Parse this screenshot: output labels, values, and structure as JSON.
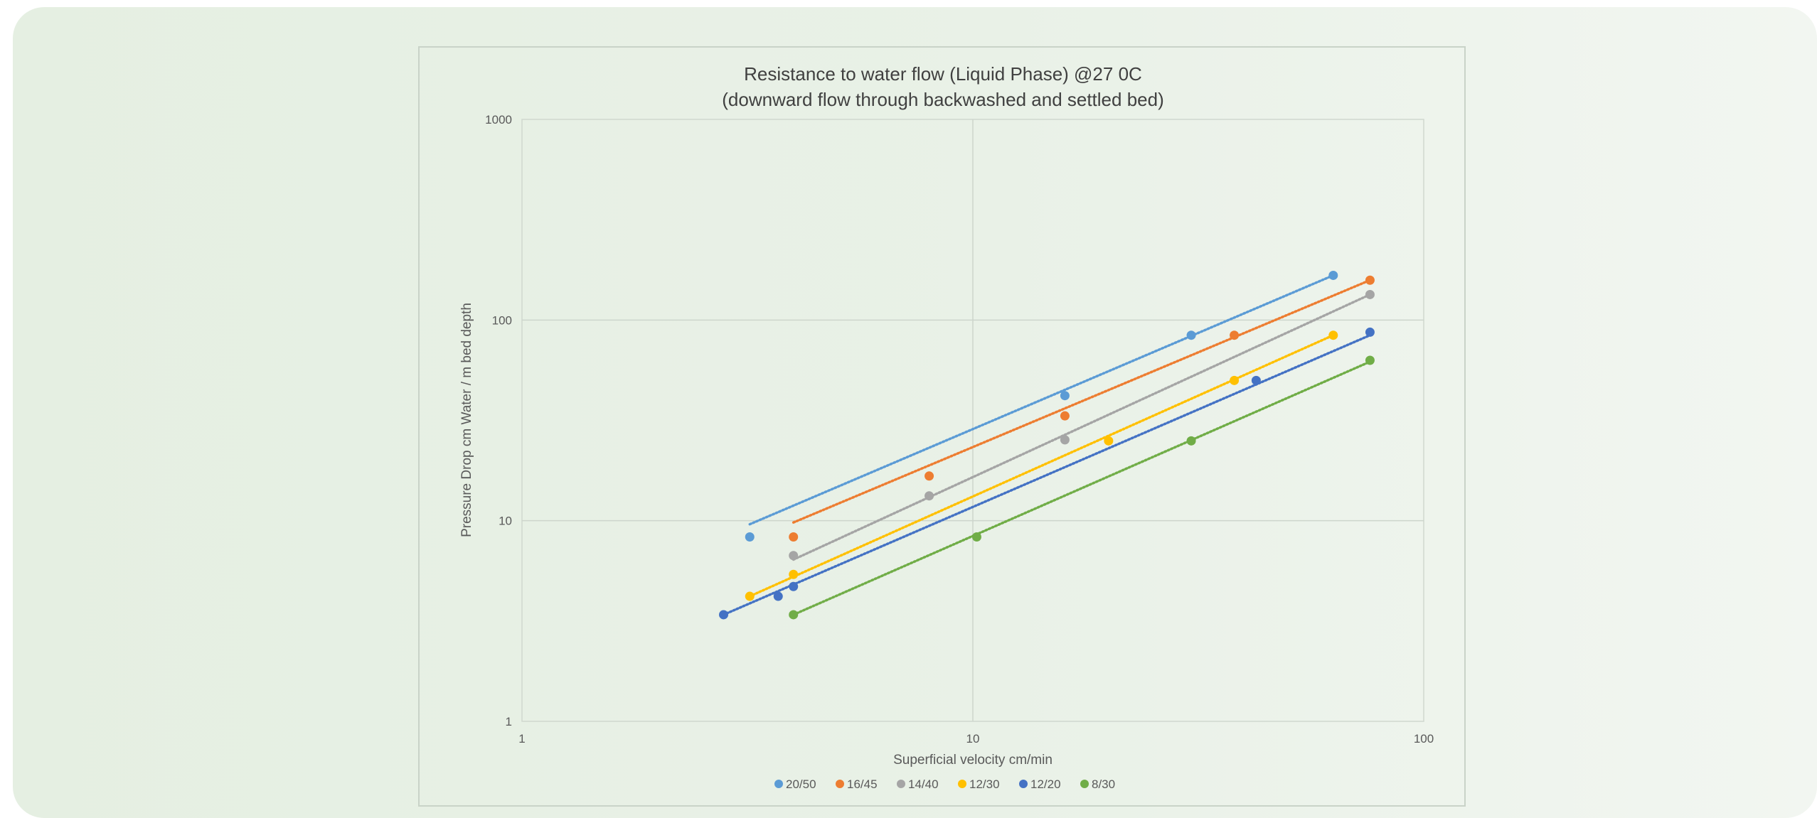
{
  "chart_data": {
    "type": "scatter",
    "title": "Resistance to water flow (Liquid Phase) @27 0C",
    "subtitle": "(downward flow through backwashed and settled bed)",
    "xlabel": "Superficial velocity cm/min",
    "ylabel": "Pressure Drop cm Water / m bed depth",
    "xscale": "log",
    "yscale": "log",
    "xlim": [
      1,
      100
    ],
    "ylim": [
      1,
      1000
    ],
    "x_ticks": [
      "1",
      "10",
      "100"
    ],
    "y_ticks": [
      "1",
      "10",
      "100",
      "1000"
    ],
    "grid": true,
    "legend_position": "bottom",
    "trendlines": "dotted power-law fit per series",
    "series": [
      {
        "name": "20/50",
        "color": "#5b9bd5",
        "points": [
          [
            3.2,
            8.3
          ],
          [
            16,
            42
          ],
          [
            30.5,
            84
          ],
          [
            63,
            167
          ]
        ],
        "trend": [
          [
            3.2,
            9.6
          ],
          [
            63,
            167
          ]
        ]
      },
      {
        "name": "16/45",
        "color": "#ed7d31",
        "points": [
          [
            4,
            8.3
          ],
          [
            8,
            16.7
          ],
          [
            16,
            33.3
          ],
          [
            38,
            84
          ],
          [
            76,
            158
          ]
        ],
        "trend": [
          [
            4,
            9.8
          ],
          [
            76,
            158
          ]
        ]
      },
      {
        "name": "14/40",
        "color": "#a5a5a5",
        "points": [
          [
            4,
            6.7
          ],
          [
            8,
            13.3
          ],
          [
            16,
            25.3
          ],
          [
            76,
            134
          ]
        ],
        "trend": [
          [
            4,
            6.4
          ],
          [
            76,
            134
          ]
        ]
      },
      {
        "name": "12/30",
        "color": "#ffc000",
        "points": [
          [
            3.2,
            4.2
          ],
          [
            4,
            5.4
          ],
          [
            20,
            25
          ],
          [
            38,
            50
          ],
          [
            63,
            84
          ]
        ],
        "trend": [
          [
            3.2,
            4.2
          ],
          [
            63,
            84
          ]
        ]
      },
      {
        "name": "12/20",
        "color": "#4472c4",
        "points": [
          [
            2.8,
            3.4
          ],
          [
            3.7,
            4.2
          ],
          [
            4,
            4.7
          ],
          [
            42.5,
            50
          ],
          [
            76,
            87
          ]
        ],
        "trend": [
          [
            2.8,
            3.4
          ],
          [
            76,
            84
          ]
        ]
      },
      {
        "name": "8/30",
        "color": "#70ad47",
        "points": [
          [
            4,
            3.4
          ],
          [
            10.2,
            8.3
          ],
          [
            30.5,
            25
          ],
          [
            76,
            63
          ]
        ],
        "trend": [
          [
            4,
            3.4
          ],
          [
            76,
            62
          ]
        ]
      }
    ]
  }
}
